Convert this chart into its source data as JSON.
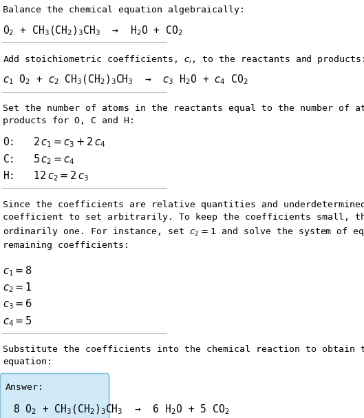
{
  "title": "Balance the chemical equation algebraically:",
  "eq1": "O$_2$ + CH$_3$(CH$_2$)$_3$CH$_3$  →  H$_2$O + CO$_2$",
  "section2_title": "Add stoichiometric coefficients, $c_i$, to the reactants and products:",
  "eq2": "$c_1$ O$_2$ + $c_2$ CH$_3$(CH$_2$)$_3$CH$_3$  →  $c_3$ H$_2$O + $c_4$ CO$_2$",
  "section3_title": "Set the number of atoms in the reactants equal to the number of atoms in the\nproducts for O, C and H:",
  "eq3_O": "O:   $2\\,c_1 = c_3 + 2\\,c_4$",
  "eq3_C": "C:   $5\\,c_2 = c_4$",
  "eq3_H": "H:   $12\\,c_2 = 2\\,c_3$",
  "section4_text": "Since the coefficients are relative quantities and underdetermined, choose a\ncoefficient to set arbitrarily. To keep the coefficients small, the arbitrary value is\nordinarily one. For instance, set $c_2 = 1$ and solve the system of equations for the\nremaining coefficients:",
  "coeff1": "$c_1 = 8$",
  "coeff2": "$c_2 = 1$",
  "coeff3": "$c_3 = 6$",
  "coeff4": "$c_4 = 5$",
  "section5_title": "Substitute the coefficients into the chemical reaction to obtain the balanced\nequation:",
  "answer_label": "Answer:",
  "answer_eq": "8 O$_2$ + CH$_3$(CH$_2$)$_3$CH$_3$  →  6 H$_2$O + 5 CO$_2$",
  "bg_color": "#ffffff",
  "text_color": "#000000",
  "box_color": "#d0eaf8",
  "box_edge_color": "#7fbfdf",
  "divider_color": "#bbbbbb",
  "font_size": 9.5,
  "eq_font_size": 10.5
}
